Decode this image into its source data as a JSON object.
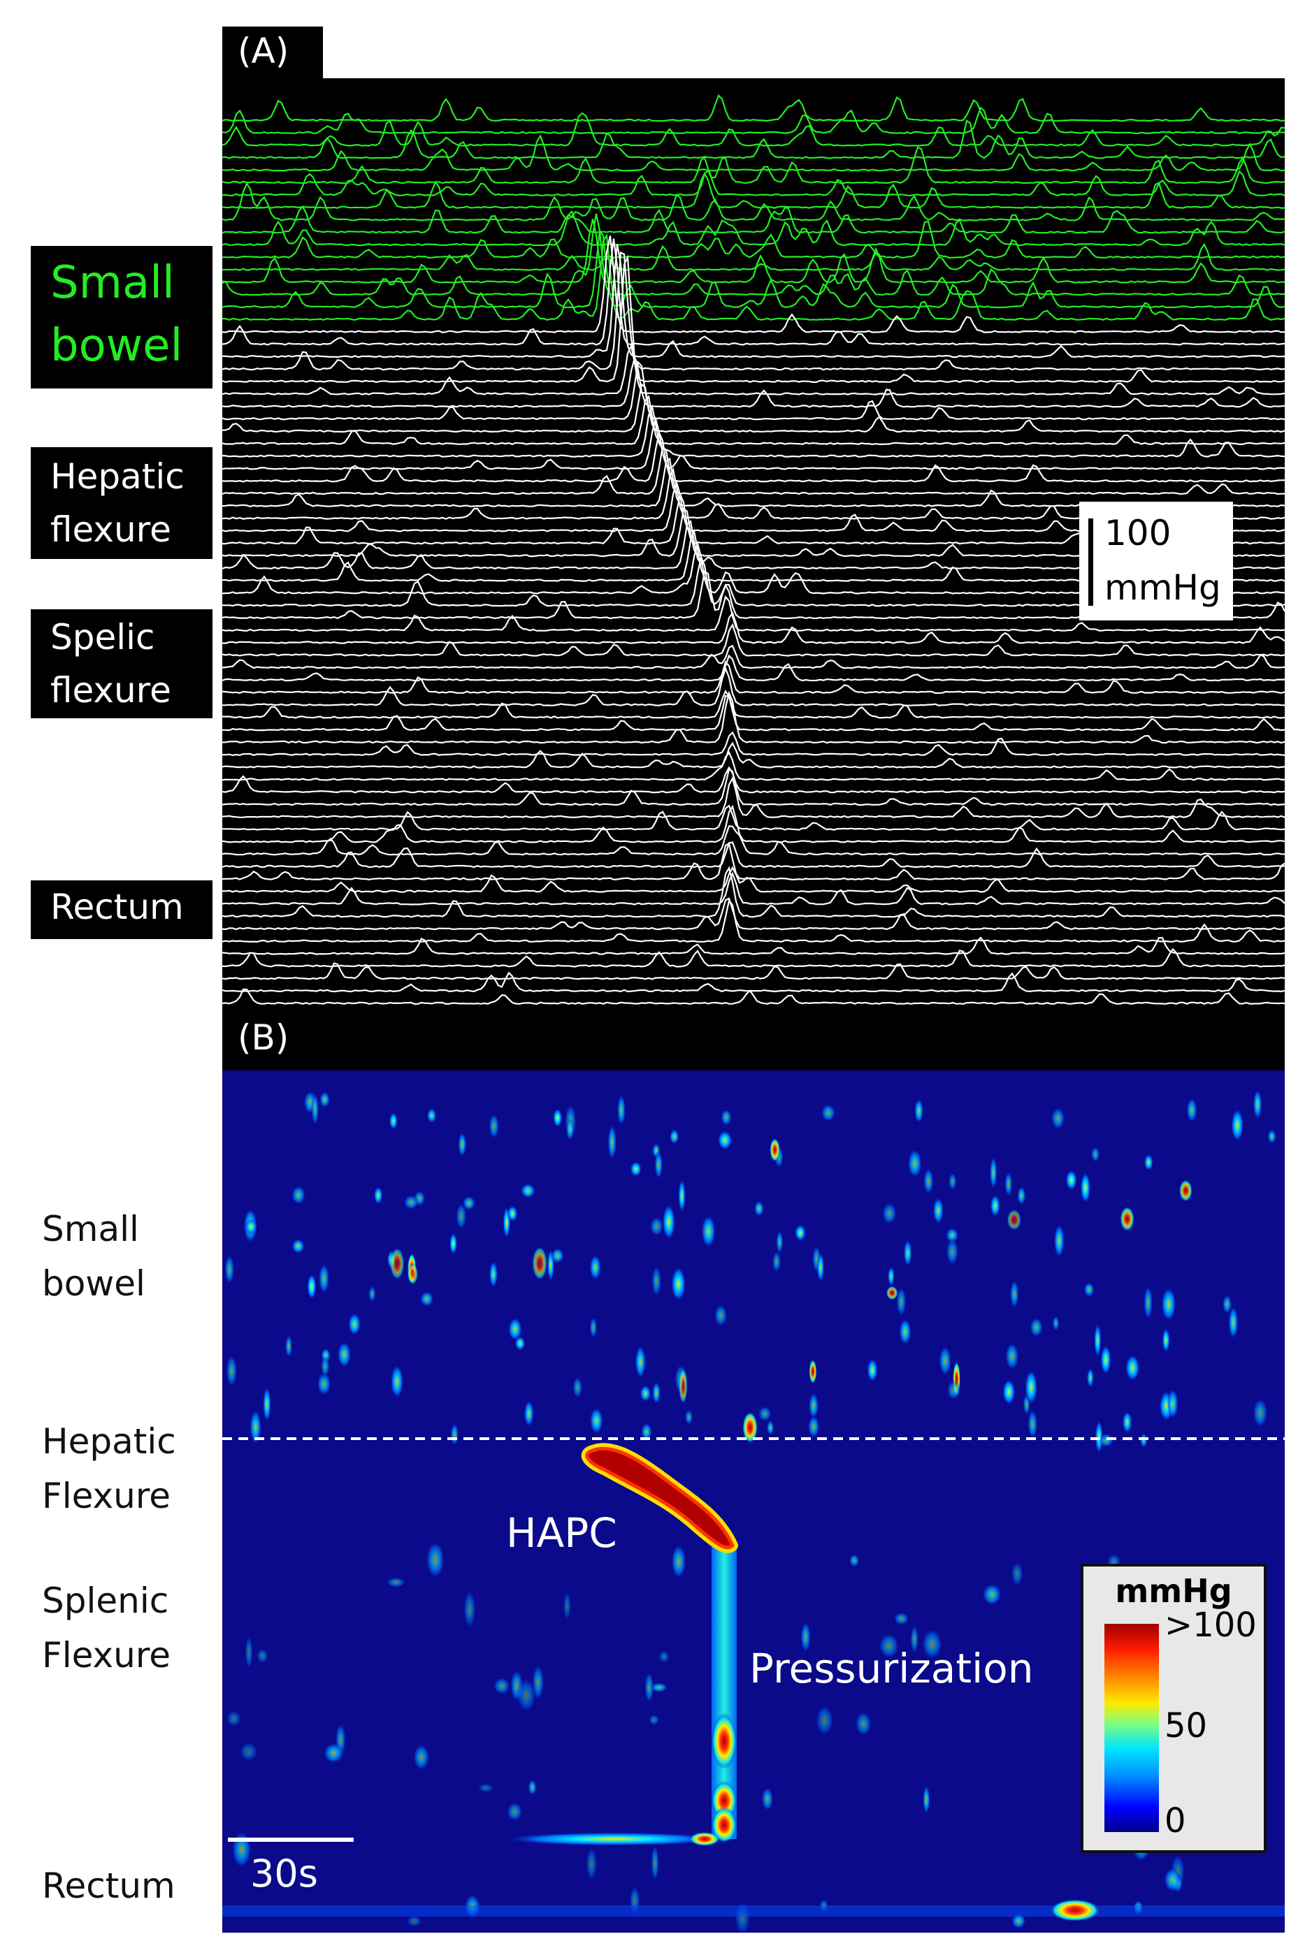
{
  "panel_a": {
    "letter": "(A)",
    "labels": {
      "small_bowel": [
        "Small",
        "bowel"
      ],
      "hepatic": [
        "Hepatic",
        "flexure"
      ],
      "splenic": [
        "Spelic",
        "flexure"
      ],
      "rectum": "Rectum"
    },
    "scale_value": "100",
    "scale_unit": "mmHg",
    "colors": {
      "small_bowel_trace": "#22ee22",
      "colon_trace": "#ffffff",
      "background": "#000000"
    }
  },
  "panel_b": {
    "letter": "(B)",
    "labels": {
      "small_bowel": [
        "Small",
        "bowel"
      ],
      "hepatic": [
        "Hepatic",
        "Flexure"
      ],
      "splenic": [
        "Splenic",
        "Flexure"
      ],
      "rectum": "Rectum"
    },
    "annotations": {
      "hapc": "HAPC",
      "pressurization": "Pressurization"
    },
    "time_scale": "30s",
    "legend": {
      "title": "mmHg",
      "ticks": [
        ">100",
        "50",
        "0"
      ]
    },
    "colors": {
      "background": "#0a0a8a",
      "high": "#a00000",
      "low": "#00008b"
    }
  }
}
